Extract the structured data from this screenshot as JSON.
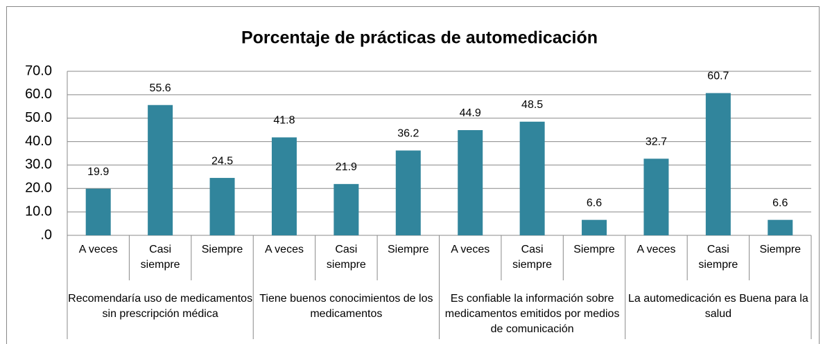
{
  "chart_data": {
    "type": "bar",
    "title": "Porcentaje de prácticas de automedicación",
    "color": "#31859c",
    "grid": true,
    "ylim": [
      0,
      70
    ],
    "yticks": [
      {
        "value": 0,
        "label": ".0"
      },
      {
        "value": 10,
        "label": "10.0"
      },
      {
        "value": 20,
        "label": "20.0"
      },
      {
        "value": 30,
        "label": "30.0"
      },
      {
        "value": 40,
        "label": "40.0"
      },
      {
        "value": 50,
        "label": "50.0"
      },
      {
        "value": 60,
        "label": "60.0"
      },
      {
        "value": 70,
        "label": "70.0"
      }
    ],
    "groups": [
      {
        "name": "Recomendaría uso de medicamentos sin prescripción médica",
        "categories": [
          "A veces",
          "Casi siempre",
          "Siempre"
        ],
        "values": [
          19.9,
          55.6,
          24.5
        ]
      },
      {
        "name": "Tiene buenos conocimientos de los medicamentos",
        "categories": [
          "A veces",
          "Casi siempre",
          "Siempre"
        ],
        "values": [
          41.8,
          21.9,
          36.2
        ]
      },
      {
        "name": "Es confiable la información sobre medicamentos emitidos por medios de comunicación",
        "categories": [
          "A veces",
          "Casi siempre",
          "Siempre"
        ],
        "values": [
          44.9,
          48.5,
          6.6
        ]
      },
      {
        "name": "La automedicación es Buena para la salud",
        "categories": [
          "A veces",
          "Casi siempre",
          "Siempre"
        ],
        "values": [
          32.7,
          60.7,
          6.6
        ]
      }
    ]
  }
}
